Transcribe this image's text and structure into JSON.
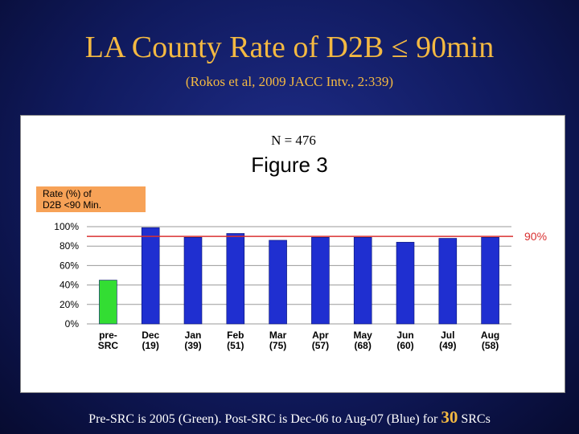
{
  "slide": {
    "title": "LA County Rate of D2B ≤ 90min",
    "subtitle": "(Rokos et al, 2009 JACC Intv., 2:339)",
    "caption_before": "Pre-SRC is 2005 (Green). Post-SRC is Dec-06 to Aug-07 (Blue) for ",
    "caption_number": "30",
    "caption_after": " SRCs"
  },
  "chart_data": {
    "type": "bar",
    "title": "Figure 3",
    "annotation": "N = 476",
    "ylabel": "Rate (%) of\nD2B <90 Min.",
    "ylim": [
      0,
      100
    ],
    "yticks": [
      "0%",
      "20%",
      "40%",
      "60%",
      "80%",
      "100%"
    ],
    "categories": [
      "pre-\nSRC",
      "Dec\n(19)",
      "Jan\n(39)",
      "Feb\n(51)",
      "Mar\n(75)",
      "Apr\n(57)",
      "May\n(68)",
      "Jun\n(60)",
      "Jul\n(49)",
      "Aug\n(58)"
    ],
    "values": [
      45,
      99,
      89,
      93,
      86,
      89,
      89,
      84,
      88,
      89
    ],
    "bar_colors": [
      "#33dd33",
      "#1f2fd0",
      "#1f2fd0",
      "#1f2fd0",
      "#1f2fd0",
      "#1f2fd0",
      "#1f2fd0",
      "#1f2fd0",
      "#1f2fd0",
      "#1f2fd0"
    ],
    "reference_line": {
      "value": 90,
      "label": "90%",
      "color": "#d93030"
    }
  }
}
